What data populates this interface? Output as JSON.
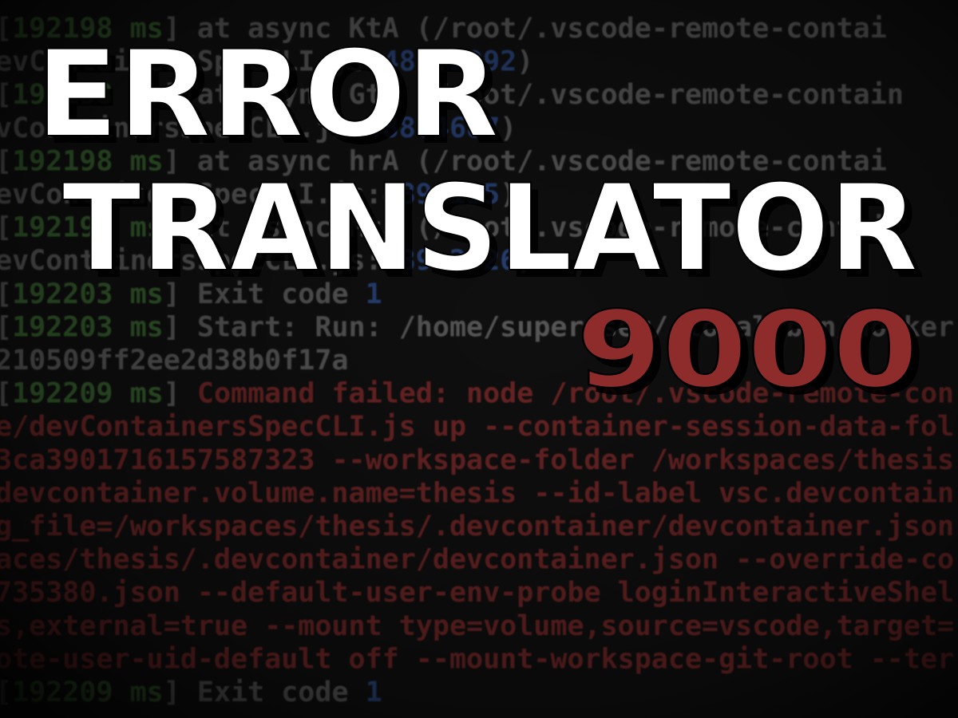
{
  "title": {
    "lines": [
      "ERROR",
      "TRANSLATOR"
    ],
    "number": "9000"
  },
  "terminal": {
    "lines": [
      [
        [
          "[",
          "g"
        ],
        [
          "192198 ms",
          "n"
        ],
        [
          "]     at async KtA (/root/.vscode-remote-contai",
          "g"
        ]
      ],
      [
        [
          "evContainersSpecCLI.js:",
          "g"
        ],
        [
          "488:2092",
          "b"
        ],
        [
          ")",
          "g"
        ]
      ],
      [
        [
          "[",
          "g"
        ],
        [
          "192198 ms",
          "n"
        ],
        [
          "]     at async GtA (/root/.vscode-remote-contain",
          "g"
        ]
      ],
      [
        [
          "vContainersSpecCLI.js:",
          "g"
        ],
        [
          "488:4687",
          "b"
        ],
        [
          ")",
          "g"
        ]
      ],
      [
        [
          "[",
          "g"
        ],
        [
          "192198 ms",
          "n"
        ],
        [
          "]     at async hrA (/root/.vscode-remote-contai",
          "g"
        ]
      ],
      [
        [
          "evContainersSpecCLI.js:",
          "g"
        ],
        [
          "489:155",
          "b"
        ],
        [
          ")",
          "g"
        ]
      ],
      [
        [
          "[",
          "g"
        ],
        [
          "192198 ms",
          "n"
        ],
        [
          "]     at async MtA (/root/.vscode-remote-contai",
          "g"
        ]
      ],
      [
        [
          "evContainersSpecCLI.js:",
          "g"
        ],
        [
          "489:2026",
          "b"
        ],
        [
          ")",
          "g"
        ]
      ],
      [
        [
          "[",
          "g"
        ],
        [
          "192203 ms",
          "n"
        ],
        [
          "] Exit code ",
          "g"
        ],
        [
          "1",
          "b"
        ]
      ],
      [
        [
          "[",
          "g"
        ],
        [
          "192203 ms",
          "n"
        ],
        [
          "] Start: Run: /home/superuser/.local/bin/docker",
          "g"
        ]
      ],
      [
        [
          "210509ff2ee2d38b0f17a",
          "g"
        ]
      ],
      [
        [
          "[",
          "g"
        ],
        [
          "192209 ms",
          "n"
        ],
        [
          "] ",
          "g"
        ],
        [
          "Command failed: node /root/.vscode-remote-con",
          "r"
        ]
      ],
      [
        [
          "e/devContainersSpecCLI.js up --container-session-data-fol",
          "r"
        ]
      ],
      [
        [
          "3ca3901716157587323 --workspace-folder /workspaces/thesis",
          "r"
        ]
      ],
      [
        [
          "devcontainer.volume.name=thesis --id-label vsc.devcontain",
          "r"
        ]
      ],
      [
        [
          "g_file=/workspaces/thesis/.devcontainer/devcontainer.json",
          "r"
        ]
      ],
      [
        [
          "aces/thesis/.devcontainer/devcontainer.json --override-co",
          "r"
        ]
      ],
      [
        [
          "735380.json --default-user-env-probe loginInteractiveShel",
          "r"
        ]
      ],
      [
        [
          "s,external=true --mount type=volume,source=vscode,target=",
          "r"
        ]
      ],
      [
        [
          "ote-user-uid-default off --mount-workspace-git-root --ter",
          "r"
        ]
      ],
      [
        [
          "[",
          "g"
        ],
        [
          "192209 ms",
          "n"
        ],
        [
          "] Exit code ",
          "g"
        ],
        [
          "1",
          "b"
        ]
      ]
    ]
  }
}
